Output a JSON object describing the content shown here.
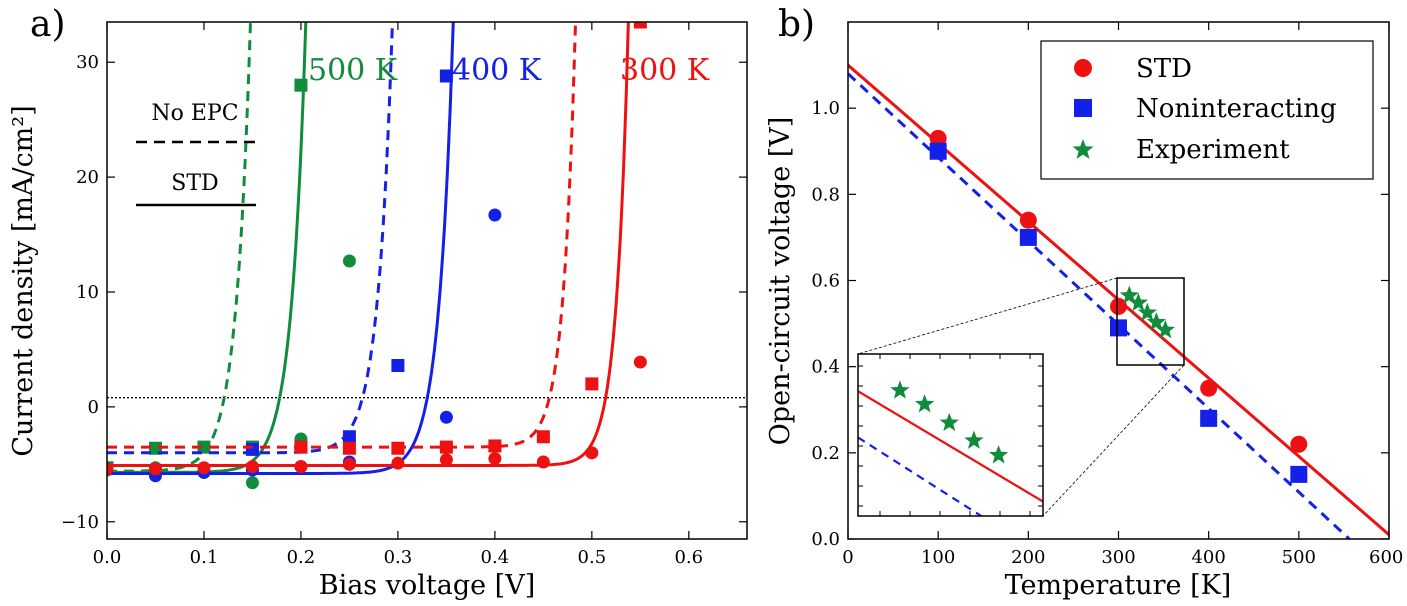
{
  "chart_data": [
    {
      "type": "line",
      "panel_label": "a)",
      "xlabel": "Bias voltage [V]",
      "ylabel": "Current density [mA/cm²]",
      "xlim": [
        0.0,
        0.66
      ],
      "ylim": [
        -11.5,
        33.5
      ],
      "xticks": [
        0.0,
        0.1,
        0.2,
        0.3,
        0.4,
        0.5,
        0.6
      ],
      "xtick_labels": [
        "0.0",
        "0.1",
        "0.2",
        "0.3",
        "0.4",
        "0.5",
        "0.6"
      ],
      "yticks": [
        -10,
        0,
        10,
        20,
        30
      ],
      "ytick_labels": [
        "−10",
        "0",
        "10",
        "20",
        "30"
      ],
      "reference_line_y": 0.8,
      "legend_text": {
        "dashed": "No EPC",
        "solid": "STD"
      },
      "series": [
        {
          "name": "500 K",
          "color": "#118c3c",
          "std_line": {
            "jsc": -5.7,
            "v0": 0.15,
            "a": 0.015
          },
          "noepc_line": {
            "jsc": -5.6,
            "v0": 0.093,
            "a": 0.015
          },
          "std_points": {
            "x": [
              0.0,
              0.05,
              0.1,
              0.15,
              0.2,
              0.25
            ],
            "y": [
              -5.5,
              -5.3,
              -5.7,
              -6.6,
              -2.8,
              12.7
            ]
          },
          "noepc_points": {
            "x": [
              0.0,
              0.05,
              0.1,
              0.15,
              0.2
            ],
            "y": [
              -5.3,
              -3.6,
              -3.5,
              -3.5,
              28.0
            ]
          }
        },
        {
          "name": "400 K",
          "color": "#1321e8",
          "std_line": {
            "jsc": -5.8,
            "v0": 0.302,
            "a": 0.015
          },
          "noepc_line": {
            "jsc": -4.0,
            "v0": 0.24,
            "a": 0.015
          },
          "std_points": {
            "x": [
              0.05,
              0.1,
              0.15,
              0.2,
              0.25,
              0.35,
              0.4
            ],
            "y": [
              -6.0,
              -5.7,
              -5.5,
              -5.2,
              -4.8,
              -0.9,
              16.7
            ]
          },
          "noepc_points": {
            "x": [
              0.15,
              0.2,
              0.25,
              0.3,
              0.35
            ],
            "y": [
              -3.7,
              -3.5,
              -2.6,
              3.6,
              28.8
            ]
          }
        },
        {
          "name": "300 K",
          "color": "#ee1111",
          "std_line": {
            "jsc": -5.1,
            "v0": 0.492,
            "a": 0.0125
          },
          "noepc_line": {
            "jsc": -3.5,
            "v0": 0.438,
            "a": 0.0125
          },
          "std_points": {
            "x": [
              0.0,
              0.05,
              0.1,
              0.15,
              0.2,
              0.25,
              0.3,
              0.35,
              0.4,
              0.45,
              0.5,
              0.55
            ],
            "y": [
              -5.4,
              -5.4,
              -5.3,
              -5.2,
              -5.2,
              -5.0,
              -4.9,
              -4.6,
              -4.5,
              -4.8,
              -4.0,
              3.9
            ]
          },
          "noepc_points": {
            "x": [
              0.2,
              0.25,
              0.3,
              0.35,
              0.4,
              0.45,
              0.5,
              0.55
            ],
            "y": [
              -3.5,
              -3.6,
              -3.6,
              -3.5,
              -3.4,
              -2.6,
              2.0,
              33.5
            ]
          }
        }
      ]
    },
    {
      "type": "scatter",
      "panel_label": "b)",
      "xlabel": "Temperature [K]",
      "ylabel": "Open-circuit voltage [V]",
      "xlim": [
        0,
        600
      ],
      "ylim": [
        0.0,
        1.2
      ],
      "xticks": [
        0,
        100,
        200,
        300,
        400,
        500,
        600
      ],
      "xtick_labels": [
        "0",
        "100",
        "200",
        "300",
        "400",
        "500",
        "600"
      ],
      "yticks": [
        0.0,
        0.2,
        0.4,
        0.6,
        0.8,
        1.0
      ],
      "ytick_labels": [
        "0.0",
        "0.2",
        "0.4",
        "0.6",
        "0.8",
        "1.0"
      ],
      "legend": [
        "STD",
        "Noninteracting",
        "Experiment"
      ],
      "series": [
        {
          "name": "STD",
          "color": "#ee1111",
          "marker": "circle",
          "x": [
            100,
            200,
            300,
            400,
            500
          ],
          "y": [
            0.93,
            0.74,
            0.54,
            0.35,
            0.22
          ]
        },
        {
          "name": "Noninteracting",
          "color": "#1321e8",
          "marker": "square",
          "x": [
            100,
            200,
            300,
            400,
            500
          ],
          "y": [
            0.9,
            0.7,
            0.49,
            0.28,
            0.15
          ]
        },
        {
          "name": "Experiment",
          "color": "#118c3c",
          "marker": "star",
          "x": [
            312,
            322,
            332,
            342,
            352
          ],
          "y": [
            0.565,
            0.548,
            0.525,
            0.503,
            0.485
          ]
        }
      ],
      "fit_lines": [
        {
          "name": "STD fit",
          "color": "#ee1111",
          "style": "solid",
          "points": [
            [
              0,
              1.1
            ],
            [
              600,
              0.01
            ]
          ]
        },
        {
          "name": "Noninteracting fit",
          "color": "#1321e8",
          "style": "dashed",
          "points": [
            [
              0,
              1.08
            ],
            [
              556,
              0.0
            ]
          ]
        }
      ],
      "inset": {
        "xlim": [
          295,
          370
        ],
        "ylim": [
          0.41,
          0.61
        ]
      }
    }
  ]
}
